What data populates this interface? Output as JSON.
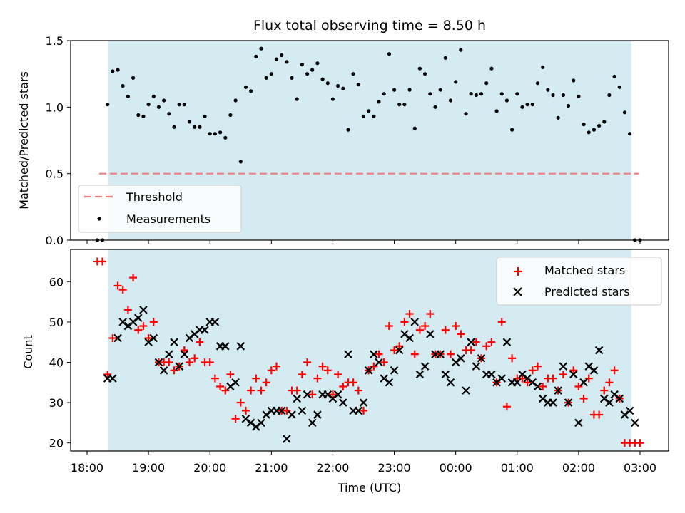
{
  "chart_data": {
    "title": "Flux total observing time = 8.50 h",
    "xlabel": "Time (UTC)",
    "x_ticks": [
      "18:00",
      "19:00",
      "20:00",
      "21:00",
      "22:00",
      "23:00",
      "00:00",
      "01:00",
      "02:00",
      "03:00"
    ],
    "shaded_region_color": "#d4ebf2",
    "panels": [
      {
        "type": "scatter",
        "ylabel": "Matched/Predicted stars",
        "ylim": [
          0,
          1.5
        ],
        "y_ticks": [
          "0.0",
          "0.5",
          "1.0",
          "1.5"
        ],
        "threshold": {
          "name": "Threshold",
          "value": 0.5,
          "color": "#f08080",
          "style": "dashed"
        },
        "legend": [
          "Threshold",
          "Measurements"
        ],
        "legend_position": "lower-left",
        "series": [
          {
            "name": "Measurements",
            "color": "#000000",
            "marker": "dot",
            "x": [
              "18:10",
              "18:15",
              "18:20",
              "18:25",
              "18:30",
              "18:35",
              "18:40",
              "18:45",
              "18:50",
              "18:55",
              "19:00",
              "19:05",
              "19:10",
              "19:15",
              "19:20",
              "19:25",
              "19:30",
              "19:35",
              "19:40",
              "19:45",
              "19:50",
              "19:55",
              "20:00",
              "20:05",
              "20:10",
              "20:15",
              "20:20",
              "20:25",
              "20:30",
              "20:35",
              "20:40",
              "20:45",
              "20:50",
              "20:55",
              "21:00",
              "21:05",
              "21:10",
              "21:15",
              "21:20",
              "21:25",
              "21:30",
              "21:35",
              "21:40",
              "21:45",
              "21:50",
              "21:55",
              "22:00",
              "22:05",
              "22:10",
              "22:15",
              "22:20",
              "22:25",
              "22:30",
              "22:35",
              "22:40",
              "22:45",
              "22:50",
              "22:55",
              "23:00",
              "23:05",
              "23:10",
              "23:15",
              "23:20",
              "23:25",
              "23:30",
              "23:35",
              "23:40",
              "23:45",
              "23:50",
              "23:55",
              "00:00",
              "00:05",
              "00:10",
              "00:15",
              "00:20",
              "00:25",
              "00:30",
              "00:35",
              "00:40",
              "00:45",
              "00:50",
              "00:55",
              "01:00",
              "01:05",
              "01:10",
              "01:15",
              "01:20",
              "01:25",
              "01:30",
              "01:35",
              "01:40",
              "01:45",
              "01:50",
              "01:55",
              "02:00",
              "02:05",
              "02:10",
              "02:15",
              "02:20",
              "02:25",
              "02:30",
              "02:35",
              "02:40",
              "02:45",
              "02:50",
              "02:55",
              "03:00"
            ],
            "y": [
              0.0,
              0.0,
              1.02,
              1.27,
              1.28,
              1.16,
              1.08,
              1.22,
              0.94,
              0.93,
              1.02,
              1.08,
              1.0,
              1.05,
              0.95,
              0.85,
              1.02,
              1.02,
              0.89,
              0.85,
              0.85,
              0.93,
              0.8,
              0.8,
              0.81,
              0.77,
              0.94,
              1.05,
              0.59,
              1.15,
              1.12,
              1.38,
              1.44,
              1.22,
              1.25,
              1.36,
              1.39,
              1.34,
              1.22,
              1.06,
              1.32,
              1.25,
              1.28,
              1.33,
              1.21,
              1.18,
              1.06,
              1.16,
              1.14,
              0.83,
              1.25,
              1.17,
              0.93,
              0.97,
              0.93,
              1.04,
              1.1,
              1.4,
              1.13,
              1.02,
              1.02,
              1.13,
              0.84,
              1.29,
              1.25,
              1.1,
              1.0,
              1.13,
              1.37,
              1.05,
              1.19,
              1.43,
              0.95,
              1.1,
              1.09,
              1.1,
              1.18,
              1.29,
              0.97,
              1.1,
              1.05,
              0.83,
              1.1,
              1.0,
              1.02,
              1.02,
              1.18,
              1.3,
              1.13,
              1.09,
              0.92,
              1.09,
              1.01,
              1.2,
              1.08,
              0.87,
              0.81,
              0.83,
              0.86,
              0.89,
              1.09,
              1.23,
              1.15,
              0.96,
              0.8,
              0.0,
              0.0
            ]
          }
        ]
      },
      {
        "type": "scatter",
        "ylabel": "Count",
        "ylim": [
          18,
          68
        ],
        "y_ticks": [
          "20",
          "30",
          "40",
          "50",
          "60"
        ],
        "legend": [
          "Matched stars",
          "Predicted stars"
        ],
        "legend_position": "top-right",
        "series": [
          {
            "name": "Matched stars",
            "color": "#ff0000",
            "marker": "plus",
            "x": [
              "18:10",
              "18:15",
              "18:20",
              "18:25",
              "18:30",
              "18:35",
              "18:40",
              "18:45",
              "18:50",
              "18:55",
              "19:00",
              "19:05",
              "19:10",
              "19:15",
              "19:20",
              "19:25",
              "19:30",
              "19:35",
              "19:40",
              "19:45",
              "19:50",
              "19:55",
              "20:00",
              "20:05",
              "20:10",
              "20:15",
              "20:20",
              "20:25",
              "20:30",
              "20:35",
              "20:40",
              "20:45",
              "20:50",
              "20:55",
              "21:00",
              "21:05",
              "21:10",
              "21:15",
              "21:20",
              "21:25",
              "21:30",
              "21:35",
              "21:40",
              "21:45",
              "21:50",
              "21:55",
              "22:00",
              "22:05",
              "22:10",
              "22:15",
              "22:20",
              "22:25",
              "22:30",
              "22:35",
              "22:40",
              "22:45",
              "22:50",
              "22:55",
              "23:00",
              "23:05",
              "23:10",
              "23:15",
              "23:20",
              "23:25",
              "23:30",
              "23:35",
              "23:40",
              "23:45",
              "23:50",
              "23:55",
              "00:00",
              "00:05",
              "00:10",
              "00:15",
              "00:20",
              "00:25",
              "00:30",
              "00:35",
              "00:40",
              "00:45",
              "00:50",
              "00:55",
              "01:00",
              "01:05",
              "01:10",
              "01:15",
              "01:20",
              "01:25",
              "01:30",
              "01:35",
              "01:40",
              "01:45",
              "01:50",
              "01:55",
              "02:00",
              "02:05",
              "02:10",
              "02:15",
              "02:20",
              "02:25",
              "02:30",
              "02:35",
              "02:40",
              "02:45",
              "02:50",
              "02:55",
              "03:00"
            ],
            "y": [
              65,
              65,
              37,
              46,
              59,
              58,
              53,
              61,
              48,
              49,
              46,
              50,
              40,
              40,
              40,
              38,
              39,
              43,
              40,
              41,
              45,
              40,
              40,
              36,
              34,
              33,
              37,
              26,
              30,
              28,
              33,
              36,
              33,
              35,
              38,
              39,
              28,
              28,
              33,
              33,
              37,
              40,
              32,
              36,
              39,
              38,
              32,
              37,
              34,
              35,
              35,
              33,
              28,
              38,
              39,
              42,
              40,
              49,
              43,
              44,
              50,
              52,
              42,
              48,
              49,
              52,
              42,
              42,
              48,
              42,
              49,
              47,
              43,
              43,
              45,
              41,
              44,
              45,
              35,
              50,
              29,
              41,
              36,
              36,
              35,
              38,
              39,
              34,
              36,
              36,
              33,
              37,
              30,
              38,
              34,
              31,
              36,
              27,
              27,
              33,
              35,
              38,
              31,
              20,
              20,
              20,
              20
            ]
          },
          {
            "name": "Predicted stars",
            "color": "#000000",
            "marker": "x",
            "x": [
              "18:20",
              "18:25",
              "18:30",
              "18:35",
              "18:40",
              "18:45",
              "18:50",
              "18:55",
              "19:00",
              "19:05",
              "19:10",
              "19:15",
              "19:20",
              "19:25",
              "19:30",
              "19:35",
              "19:40",
              "19:45",
              "19:50",
              "19:55",
              "20:00",
              "20:05",
              "20:10",
              "20:15",
              "20:20",
              "20:25",
              "20:30",
              "20:35",
              "20:40",
              "20:45",
              "20:50",
              "20:55",
              "21:00",
              "21:05",
              "21:10",
              "21:15",
              "21:20",
              "21:25",
              "21:30",
              "21:35",
              "21:40",
              "21:45",
              "21:50",
              "21:55",
              "22:00",
              "22:05",
              "22:10",
              "22:15",
              "22:20",
              "22:25",
              "22:30",
              "22:35",
              "22:40",
              "22:45",
              "22:50",
              "22:55",
              "23:00",
              "23:05",
              "23:10",
              "23:15",
              "23:20",
              "23:25",
              "23:30",
              "23:35",
              "23:40",
              "23:45",
              "23:50",
              "23:55",
              "00:00",
              "00:05",
              "00:10",
              "00:15",
              "00:20",
              "00:25",
              "00:30",
              "00:35",
              "00:40",
              "00:45",
              "00:50",
              "00:55",
              "01:00",
              "01:05",
              "01:10",
              "01:15",
              "01:20",
              "01:25",
              "01:30",
              "01:35",
              "01:40",
              "01:45",
              "01:50",
              "01:55",
              "02:00",
              "02:05",
              "02:10",
              "02:15",
              "02:20",
              "02:25",
              "02:30",
              "02:35",
              "02:40",
              "02:45",
              "02:50",
              "02:55"
            ],
            "y": [
              36,
              36,
              46,
              50,
              49,
              50,
              51,
              53,
              45,
              46,
              40,
              38,
              42,
              45,
              39,
              42,
              46,
              47,
              48,
              48,
              50,
              50,
              44,
              44,
              34,
              35,
              44,
              26,
              25,
              24,
              25,
              27,
              28,
              28,
              28,
              21,
              27,
              31,
              28,
              32,
              25,
              27,
              32,
              32,
              31,
              32,
              30,
              42,
              28,
              28,
              30,
              38,
              42,
              40,
              36,
              35,
              38,
              43,
              47,
              46,
              50,
              37,
              39,
              47,
              42,
              42,
              37,
              35,
              40,
              41,
              33,
              45,
              39,
              41,
              37,
              37,
              35,
              36,
              45,
              35,
              35,
              37,
              36,
              35,
              34,
              31,
              30,
              30,
              33,
              39,
              30,
              37,
              25,
              35,
              39,
              38,
              43,
              31,
              30,
              32,
              31,
              27,
              28,
              25
            ]
          }
        ]
      }
    ]
  }
}
